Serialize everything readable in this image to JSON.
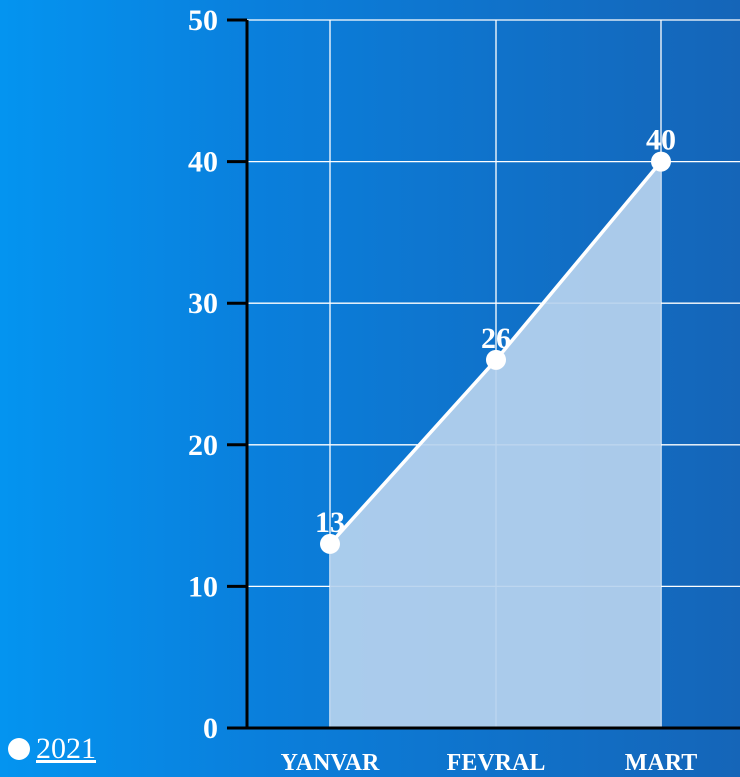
{
  "chart_data": {
    "type": "area",
    "categories": [
      "YANVAR",
      "FEVRAL",
      "MART"
    ],
    "series": [
      {
        "name": "2021",
        "values": [
          13,
          26,
          40
        ]
      }
    ],
    "ylim": [
      0,
      50
    ],
    "yticks": [
      0,
      10,
      20,
      30,
      40,
      50
    ],
    "grid": true,
    "legend_position": "bottom-left",
    "colors": {
      "line": "#ffffff",
      "area_fill": "#b7d3ee",
      "grid": "#ffffff",
      "axis": "#000000"
    }
  }
}
